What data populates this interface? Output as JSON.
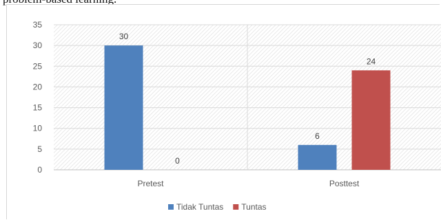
{
  "page": {
    "caption_fragment": "problem-based learning."
  },
  "chart_data": {
    "type": "bar",
    "title": "",
    "xlabel": "",
    "ylabel": "",
    "categories": [
      "Pretest",
      "Posttest"
    ],
    "series": [
      {
        "name": "Tidak Tuntas",
        "values": [
          30,
          6
        ],
        "color": "#4f81bd"
      },
      {
        "name": "Tuntas",
        "values": [
          0,
          24
        ],
        "color": "#c0504d"
      }
    ],
    "ylim": [
      0,
      35
    ],
    "yticks": [
      0,
      5,
      10,
      15,
      20,
      25,
      30,
      35
    ],
    "grid": true,
    "legend_position": "bottom"
  }
}
